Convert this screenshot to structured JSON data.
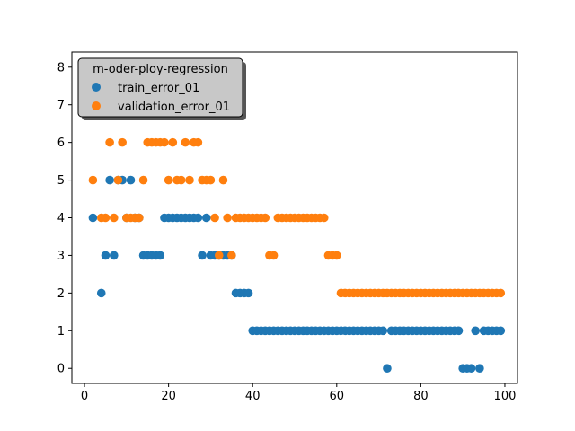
{
  "chart_data": {
    "type": "scatter",
    "title": "",
    "xlabel": "",
    "ylabel": "",
    "xlim": [
      -3,
      103
    ],
    "ylim": [
      -0.4,
      8.4
    ],
    "xticks": [
      0,
      20,
      40,
      60,
      80,
      100
    ],
    "yticks": [
      0,
      1,
      2,
      3,
      4,
      5,
      6,
      7,
      8
    ],
    "grid": false,
    "legend": {
      "title": "m-oder-ploy-regression",
      "placement": "top-left"
    },
    "series": [
      {
        "name": "train_error_01",
        "color": "#1f77b4",
        "x": [
          2,
          4,
          5,
          6,
          7,
          8,
          9,
          10,
          11,
          12,
          13,
          14,
          15,
          16,
          17,
          18,
          19,
          20,
          21,
          22,
          23,
          24,
          25,
          26,
          27,
          28,
          29,
          30,
          31,
          32,
          33,
          34,
          35,
          36,
          37,
          38,
          39,
          40,
          41,
          42,
          43,
          44,
          45,
          46,
          47,
          48,
          49,
          50,
          51,
          52,
          53,
          54,
          55,
          56,
          57,
          58,
          59,
          60,
          61,
          62,
          63,
          64,
          65,
          66,
          67,
          68,
          69,
          70,
          71,
          72,
          73,
          74,
          75,
          76,
          77,
          78,
          79,
          80,
          81,
          82,
          83,
          84,
          85,
          86,
          87,
          88,
          89,
          90,
          91,
          92,
          93,
          94,
          95,
          96,
          97,
          98,
          99
        ],
        "y": [
          4,
          2,
          3,
          5,
          3,
          5,
          5,
          4,
          5,
          4,
          4,
          3,
          3,
          3,
          3,
          3,
          4,
          4,
          4,
          4,
          4,
          4,
          4,
          4,
          4,
          3,
          4,
          3,
          3,
          3,
          3,
          3,
          3,
          2,
          2,
          2,
          2,
          1,
          1,
          1,
          1,
          1,
          1,
          1,
          1,
          1,
          1,
          1,
          1,
          1,
          1,
          1,
          1,
          1,
          1,
          1,
          1,
          1,
          1,
          1,
          1,
          1,
          1,
          1,
          1,
          1,
          1,
          1,
          1,
          0,
          1,
          1,
          1,
          1,
          1,
          1,
          1,
          1,
          1,
          1,
          1,
          1,
          1,
          1,
          1,
          1,
          1,
          0,
          0,
          0,
          1,
          0,
          1,
          1,
          1,
          1,
          1
        ]
      },
      {
        "name": "validation_error_01",
        "color": "#ff7f0e",
        "x": [
          2,
          4,
          5,
          6,
          7,
          8,
          9,
          10,
          11,
          12,
          13,
          14,
          15,
          16,
          17,
          18,
          19,
          20,
          21,
          22,
          23,
          24,
          25,
          26,
          27,
          28,
          29,
          30,
          31,
          32,
          33,
          34,
          35,
          36,
          37,
          38,
          39,
          40,
          41,
          42,
          43,
          44,
          45,
          46,
          47,
          48,
          49,
          50,
          51,
          52,
          53,
          54,
          55,
          56,
          57,
          58,
          59,
          60,
          61,
          62,
          63,
          64,
          65,
          66,
          67,
          68,
          69,
          70,
          71,
          72,
          73,
          74,
          75,
          76,
          77,
          78,
          79,
          80,
          81,
          82,
          83,
          84,
          85,
          86,
          87,
          88,
          89,
          90,
          91,
          92,
          93,
          94,
          95,
          96,
          97,
          98,
          99
        ],
        "y": [
          5,
          4,
          4,
          6,
          4,
          5,
          6,
          4,
          4,
          4,
          4,
          5,
          6,
          6,
          6,
          6,
          6,
          5,
          6,
          5,
          5,
          6,
          5,
          6,
          6,
          5,
          5,
          5,
          4,
          3,
          5,
          4,
          3,
          4,
          4,
          4,
          4,
          4,
          4,
          4,
          4,
          3,
          3,
          4,
          4,
          4,
          4,
          4,
          4,
          4,
          4,
          4,
          4,
          4,
          4,
          3,
          3,
          3,
          2,
          2,
          2,
          2,
          2,
          2,
          2,
          2,
          2,
          2,
          2,
          2,
          2,
          2,
          2,
          2,
          2,
          2,
          2,
          2,
          2,
          2,
          2,
          2,
          2,
          2,
          2,
          2,
          2,
          2,
          2,
          2,
          2,
          2,
          2,
          2,
          2,
          2,
          2
        ]
      }
    ]
  }
}
